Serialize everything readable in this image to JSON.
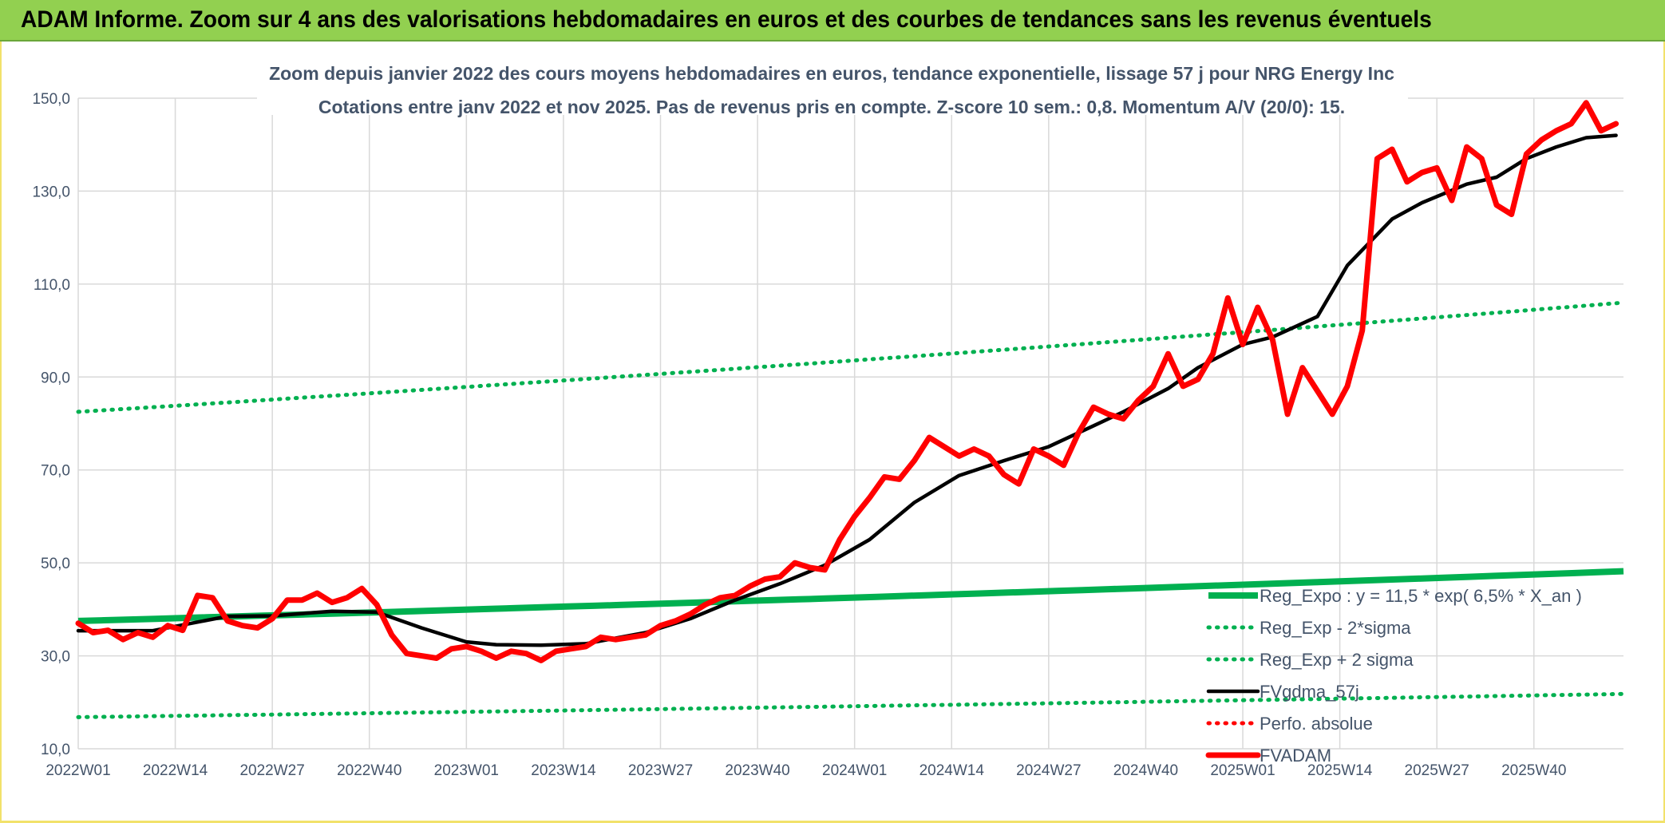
{
  "header": {
    "title": "ADAM Informe. Zoom sur 4 ans des valorisations hebdomadaires en euros et des courbes de tendances sans les revenus éventuels"
  },
  "chart_data": {
    "type": "line",
    "title": "Zoom depuis janvier 2022 des cours moyens hebdomadaires en euros, tendance exponentielle, lissage 57 j pour NRG Energy Inc",
    "subtitle": "Cotations entre janv 2022 et nov 2025. Pas de revenus pris en compte. Z-score 10 sem.: 0,8. Momentum A/V (20/0): 15.",
    "xlabel": "",
    "ylabel": "",
    "ylim": [
      10,
      150
    ],
    "y_ticks": [
      "150,0",
      "130,0",
      "110,0",
      "90,0",
      "70,0",
      "50,0",
      "30,0",
      "10,0"
    ],
    "x_ticks": [
      "2022W01",
      "2022W14",
      "2022W27",
      "2022W40",
      "2023W01",
      "2023W14",
      "2023W27",
      "2023W40",
      "2024W01",
      "2024W14",
      "2024W27",
      "2024W40",
      "2025W01",
      "2025W14",
      "2025W27",
      "2025W40"
    ],
    "x_range": [
      0,
      207
    ],
    "grid": true,
    "legend_position": "bottom-right",
    "legend": [
      "Reg_Expo : y = 11,5 * exp( 6,5% *  X_an )",
      "Reg_Exp - 2*sigma",
      "Reg_Exp + 2 sigma",
      "FVgdma_57j",
      "Perfo. absolue",
      "FVADAM"
    ],
    "series": [
      {
        "name": "Reg_Expo : y = 11,5 * exp( 6,5% *  X_an )",
        "color": "#00b050",
        "style": "solid",
        "x": [
          0,
          207
        ],
        "values": [
          37.5,
          48.2
        ]
      },
      {
        "name": "Reg_Exp - 2*sigma",
        "color": "#00b050",
        "style": "dotted",
        "x": [
          0,
          207
        ],
        "values": [
          16.8,
          21.8
        ]
      },
      {
        "name": "Reg_Exp + 2 sigma",
        "color": "#00b050",
        "style": "dotted",
        "x": [
          0,
          207
        ],
        "values": [
          82.5,
          106.0
        ]
      },
      {
        "name": "FVgdma_57j",
        "color": "#000000",
        "style": "solid",
        "x": [
          0,
          10,
          20,
          26,
          34,
          40,
          46,
          52,
          56,
          62,
          68,
          76,
          82,
          88,
          94,
          100,
          106,
          112,
          118,
          124,
          130,
          136,
          140,
          146,
          150,
          156,
          160,
          166,
          170,
          176,
          180,
          186,
          190,
          194,
          198,
          202,
          206
        ],
        "values": [
          35.4,
          35.4,
          38.5,
          38.6,
          39.6,
          39.4,
          36.0,
          33.0,
          32.4,
          32.3,
          32.6,
          35.0,
          38.0,
          42.0,
          45.5,
          49.5,
          55.0,
          63.0,
          68.8,
          72.0,
          75.0,
          79.5,
          82.5,
          87.5,
          92.0,
          97.0,
          98.6,
          103.0,
          114.0,
          124.0,
          127.5,
          131.5,
          133.0,
          137.0,
          139.5,
          141.5,
          142.0
        ]
      },
      {
        "name": "Perfo. absolue",
        "color": "#ff0000",
        "style": "dotted",
        "x": [],
        "values": []
      },
      {
        "name": "FVADAM",
        "color": "#ff0000",
        "style": "solid",
        "x": [
          0,
          2,
          4,
          6,
          8,
          10,
          12,
          14,
          16,
          18,
          20,
          22,
          24,
          26,
          28,
          30,
          32,
          34,
          36,
          38,
          40,
          42,
          44,
          46,
          48,
          50,
          52,
          54,
          56,
          58,
          60,
          62,
          64,
          66,
          68,
          70,
          72,
          74,
          76,
          78,
          80,
          82,
          84,
          86,
          88,
          90,
          92,
          94,
          96,
          98,
          100,
          102,
          104,
          106,
          108,
          110,
          112,
          114,
          116,
          118,
          120,
          122,
          124,
          126,
          128,
          130,
          132,
          134,
          136,
          138,
          140,
          142,
          144,
          146,
          148,
          150,
          152,
          154,
          156,
          158,
          160,
          162,
          164,
          166,
          168,
          170,
          172,
          174,
          176,
          178,
          180,
          182,
          184,
          186,
          188,
          190,
          192,
          194,
          196,
          198,
          200,
          202,
          204,
          206
        ],
        "values": [
          37.0,
          35.0,
          35.5,
          33.5,
          35.0,
          34.0,
          36.5,
          35.5,
          43.0,
          42.5,
          37.5,
          36.5,
          36.0,
          38.0,
          42.0,
          42.0,
          43.5,
          41.5,
          42.5,
          44.5,
          41.0,
          34.5,
          30.5,
          30.0,
          29.5,
          31.5,
          32.0,
          31.0,
          29.5,
          31.0,
          30.5,
          29.0,
          31.0,
          31.5,
          32.0,
          34.0,
          33.5,
          34.0,
          34.5,
          36.5,
          37.5,
          39.0,
          41.0,
          42.5,
          43.0,
          45.0,
          46.5,
          47.0,
          50.0,
          49.0,
          48.5,
          55.0,
          60.0,
          64.0,
          68.5,
          68.0,
          72.0,
          77.0,
          75.0,
          73.0,
          74.5,
          73.0,
          69.0,
          67.0,
          74.5,
          73.0,
          71.0,
          78.0,
          83.5,
          82.0,
          81.0,
          85.0,
          88.0,
          95.0,
          88.0,
          89.5,
          95.0,
          107.0,
          97.0,
          105.0,
          98.0,
          82.0,
          92.0,
          87.0,
          82.0,
          88.0,
          100.0,
          137.0,
          139.0,
          132.0,
          134.0,
          135.0,
          128.0,
          139.5,
          137.0,
          127.0,
          125.0,
          138.0,
          141.0,
          143.0,
          144.5,
          149.0,
          143.0,
          144.5
        ]
      }
    ]
  }
}
